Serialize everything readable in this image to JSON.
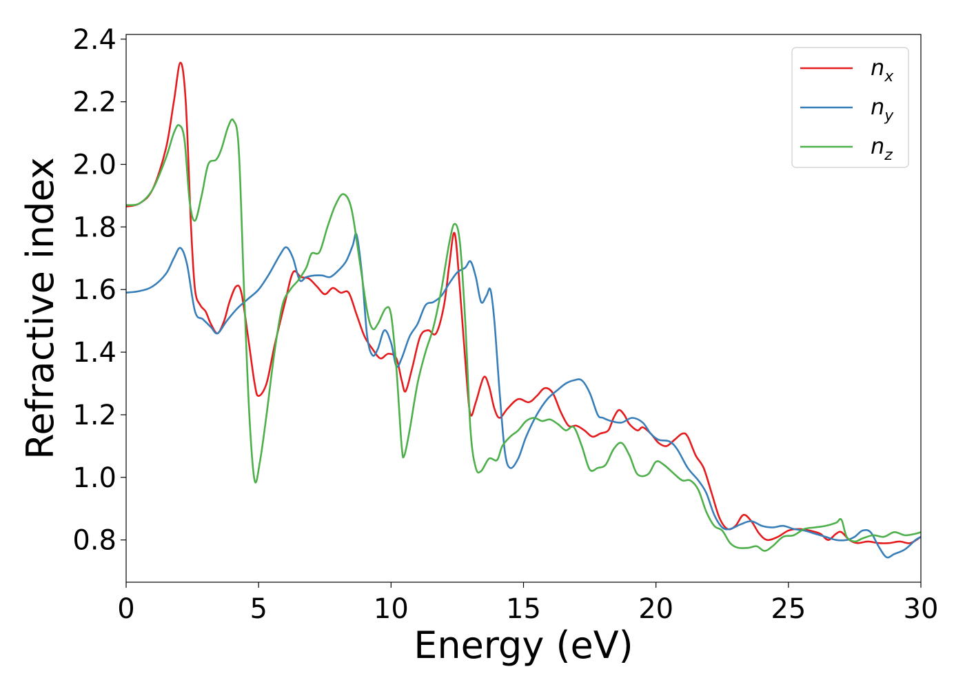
{
  "chart_data": {
    "type": "line",
    "xlabel": "Energy (eV)",
    "ylabel": "Refractive index",
    "xlim": [
      0,
      30
    ],
    "ylim": [
      0.665,
      2.415
    ],
    "xticks": [
      0,
      5,
      10,
      15,
      20,
      25,
      30
    ],
    "yticks": [
      0.8,
      1.0,
      1.2,
      1.4,
      1.6,
      1.8,
      2.0,
      2.2,
      2.4
    ],
    "xtick_labels": [
      "0",
      "5",
      "10",
      "15",
      "20",
      "25",
      "30"
    ],
    "ytick_labels": [
      "0.8",
      "1.0",
      "1.2",
      "1.4",
      "1.6",
      "1.8",
      "2.0",
      "2.2",
      "2.4"
    ],
    "grid": false,
    "legend_position": "top-right",
    "series": [
      {
        "name": "n_x",
        "label_main": "n",
        "label_sub": "x",
        "color": "#e41a1c",
        "points": [
          [
            0,
            1.865
          ],
          [
            0.5,
            1.875
          ],
          [
            1,
            1.92
          ],
          [
            1.5,
            2.05
          ],
          [
            1.8,
            2.2
          ],
          [
            2.05,
            2.325
          ],
          [
            2.25,
            2.2
          ],
          [
            2.45,
            1.8
          ],
          [
            2.6,
            1.6
          ],
          [
            2.8,
            1.55
          ],
          [
            3.0,
            1.53
          ],
          [
            3.2,
            1.49
          ],
          [
            3.45,
            1.46
          ],
          [
            3.7,
            1.5
          ],
          [
            3.9,
            1.56
          ],
          [
            4.15,
            1.61
          ],
          [
            4.35,
            1.59
          ],
          [
            4.6,
            1.45
          ],
          [
            4.85,
            1.3
          ],
          [
            5.0,
            1.26
          ],
          [
            5.3,
            1.3
          ],
          [
            5.6,
            1.42
          ],
          [
            6.0,
            1.56
          ],
          [
            6.3,
            1.655
          ],
          [
            6.6,
            1.64
          ],
          [
            6.9,
            1.635
          ],
          [
            7.2,
            1.61
          ],
          [
            7.5,
            1.585
          ],
          [
            7.8,
            1.605
          ],
          [
            8.1,
            1.59
          ],
          [
            8.4,
            1.59
          ],
          [
            8.7,
            1.52
          ],
          [
            9.0,
            1.45
          ],
          [
            9.3,
            1.41
          ],
          [
            9.6,
            1.38
          ],
          [
            9.9,
            1.395
          ],
          [
            10.2,
            1.38
          ],
          [
            10.4,
            1.31
          ],
          [
            10.55,
            1.275
          ],
          [
            10.8,
            1.35
          ],
          [
            11.1,
            1.45
          ],
          [
            11.4,
            1.47
          ],
          [
            11.7,
            1.46
          ],
          [
            12.0,
            1.55
          ],
          [
            12.2,
            1.68
          ],
          [
            12.4,
            1.78
          ],
          [
            12.6,
            1.6
          ],
          [
            12.85,
            1.32
          ],
          [
            13.0,
            1.2
          ],
          [
            13.2,
            1.24
          ],
          [
            13.5,
            1.32
          ],
          [
            13.7,
            1.29
          ],
          [
            13.9,
            1.22
          ],
          [
            14.1,
            1.19
          ],
          [
            14.4,
            1.22
          ],
          [
            14.8,
            1.25
          ],
          [
            15.2,
            1.24
          ],
          [
            15.5,
            1.26
          ],
          [
            15.8,
            1.285
          ],
          [
            16.1,
            1.27
          ],
          [
            16.4,
            1.21
          ],
          [
            16.7,
            1.165
          ],
          [
            17.0,
            1.165
          ],
          [
            17.3,
            1.15
          ],
          [
            17.6,
            1.13
          ],
          [
            17.9,
            1.14
          ],
          [
            18.2,
            1.15
          ],
          [
            18.4,
            1.19
          ],
          [
            18.6,
            1.215
          ],
          [
            18.8,
            1.2
          ],
          [
            19.0,
            1.17
          ],
          [
            19.3,
            1.15
          ],
          [
            19.5,
            1.16
          ],
          [
            19.8,
            1.14
          ],
          [
            20.1,
            1.11
          ],
          [
            20.4,
            1.1
          ],
          [
            20.7,
            1.12
          ],
          [
            21.0,
            1.14
          ],
          [
            21.2,
            1.13
          ],
          [
            21.5,
            1.07
          ],
          [
            21.8,
            1.03
          ],
          [
            22.1,
            0.95
          ],
          [
            22.4,
            0.87
          ],
          [
            22.7,
            0.835
          ],
          [
            23.0,
            0.845
          ],
          [
            23.3,
            0.88
          ],
          [
            23.6,
            0.86
          ],
          [
            23.9,
            0.82
          ],
          [
            24.2,
            0.8
          ],
          [
            24.6,
            0.81
          ],
          [
            25.0,
            0.83
          ],
          [
            25.4,
            0.835
          ],
          [
            25.8,
            0.83
          ],
          [
            26.2,
            0.82
          ],
          [
            26.5,
            0.8
          ],
          [
            26.8,
            0.82
          ],
          [
            27.0,
            0.825
          ],
          [
            27.3,
            0.8
          ],
          [
            27.6,
            0.79
          ],
          [
            28.0,
            0.795
          ],
          [
            28.4,
            0.79
          ],
          [
            28.8,
            0.79
          ],
          [
            29.2,
            0.795
          ],
          [
            29.6,
            0.79
          ],
          [
            30.0,
            0.81
          ]
        ]
      },
      {
        "name": "n_y",
        "label_main": "n",
        "label_sub": "y",
        "color": "#377eb8",
        "points": [
          [
            0,
            1.59
          ],
          [
            0.5,
            1.595
          ],
          [
            1.0,
            1.61
          ],
          [
            1.5,
            1.65
          ],
          [
            1.8,
            1.7
          ],
          [
            2.05,
            1.733
          ],
          [
            2.3,
            1.68
          ],
          [
            2.6,
            1.53
          ],
          [
            2.9,
            1.505
          ],
          [
            3.2,
            1.48
          ],
          [
            3.45,
            1.46
          ],
          [
            3.8,
            1.5
          ],
          [
            4.2,
            1.54
          ],
          [
            4.6,
            1.57
          ],
          [
            5.0,
            1.6
          ],
          [
            5.4,
            1.65
          ],
          [
            5.8,
            1.71
          ],
          [
            6.05,
            1.735
          ],
          [
            6.3,
            1.7
          ],
          [
            6.55,
            1.63
          ],
          [
            6.8,
            1.64
          ],
          [
            7.1,
            1.645
          ],
          [
            7.4,
            1.645
          ],
          [
            7.7,
            1.64
          ],
          [
            8.0,
            1.66
          ],
          [
            8.3,
            1.69
          ],
          [
            8.55,
            1.74
          ],
          [
            8.7,
            1.775
          ],
          [
            8.9,
            1.65
          ],
          [
            9.1,
            1.45
          ],
          [
            9.3,
            1.39
          ],
          [
            9.5,
            1.41
          ],
          [
            9.75,
            1.47
          ],
          [
            10.0,
            1.43
          ],
          [
            10.2,
            1.355
          ],
          [
            10.4,
            1.38
          ],
          [
            10.7,
            1.45
          ],
          [
            11.0,
            1.49
          ],
          [
            11.3,
            1.55
          ],
          [
            11.6,
            1.56
          ],
          [
            11.9,
            1.58
          ],
          [
            12.2,
            1.62
          ],
          [
            12.5,
            1.655
          ],
          [
            12.8,
            1.67
          ],
          [
            13.0,
            1.69
          ],
          [
            13.2,
            1.64
          ],
          [
            13.4,
            1.56
          ],
          [
            13.6,
            1.58
          ],
          [
            13.75,
            1.6
          ],
          [
            13.9,
            1.5
          ],
          [
            14.1,
            1.27
          ],
          [
            14.3,
            1.08
          ],
          [
            14.5,
            1.03
          ],
          [
            14.8,
            1.06
          ],
          [
            15.1,
            1.13
          ],
          [
            15.5,
            1.2
          ],
          [
            15.9,
            1.25
          ],
          [
            16.3,
            1.28
          ],
          [
            16.6,
            1.3
          ],
          [
            16.9,
            1.31
          ],
          [
            17.2,
            1.31
          ],
          [
            17.5,
            1.27
          ],
          [
            17.8,
            1.2
          ],
          [
            18.0,
            1.19
          ],
          [
            18.3,
            1.18
          ],
          [
            18.7,
            1.175
          ],
          [
            19.1,
            1.19
          ],
          [
            19.5,
            1.175
          ],
          [
            19.8,
            1.14
          ],
          [
            20.1,
            1.12
          ],
          [
            20.5,
            1.115
          ],
          [
            20.8,
            1.09
          ],
          [
            21.2,
            1.03
          ],
          [
            21.6,
            0.99
          ],
          [
            21.9,
            0.95
          ],
          [
            22.2,
            0.88
          ],
          [
            22.5,
            0.84
          ],
          [
            22.8,
            0.835
          ],
          [
            23.2,
            0.85
          ],
          [
            23.6,
            0.86
          ],
          [
            24.0,
            0.845
          ],
          [
            24.4,
            0.84
          ],
          [
            24.8,
            0.845
          ],
          [
            25.2,
            0.835
          ],
          [
            25.6,
            0.83
          ],
          [
            26.0,
            0.82
          ],
          [
            26.4,
            0.81
          ],
          [
            26.8,
            0.8
          ],
          [
            27.2,
            0.8
          ],
          [
            27.5,
            0.81
          ],
          [
            27.8,
            0.83
          ],
          [
            28.1,
            0.825
          ],
          [
            28.4,
            0.78
          ],
          [
            28.7,
            0.745
          ],
          [
            29.0,
            0.755
          ],
          [
            29.4,
            0.77
          ],
          [
            29.8,
            0.8
          ],
          [
            30.0,
            0.81
          ]
        ]
      },
      {
        "name": "n_z",
        "label_main": "n",
        "label_sub": "z",
        "color": "#4daf4a",
        "points": [
          [
            0,
            1.87
          ],
          [
            0.5,
            1.875
          ],
          [
            1.0,
            1.92
          ],
          [
            1.5,
            2.02
          ],
          [
            1.8,
            2.1
          ],
          [
            2.0,
            2.125
          ],
          [
            2.2,
            2.08
          ],
          [
            2.4,
            1.88
          ],
          [
            2.6,
            1.82
          ],
          [
            2.85,
            1.9
          ],
          [
            3.1,
            2.0
          ],
          [
            3.4,
            2.015
          ],
          [
            3.6,
            2.05
          ],
          [
            3.85,
            2.12
          ],
          [
            4.05,
            2.14
          ],
          [
            4.25,
            2.05
          ],
          [
            4.45,
            1.6
          ],
          [
            4.65,
            1.2
          ],
          [
            4.85,
            0.99
          ],
          [
            5.05,
            1.05
          ],
          [
            5.3,
            1.2
          ],
          [
            5.6,
            1.4
          ],
          [
            5.9,
            1.55
          ],
          [
            6.2,
            1.6
          ],
          [
            6.5,
            1.63
          ],
          [
            6.8,
            1.67
          ],
          [
            7.0,
            1.715
          ],
          [
            7.3,
            1.72
          ],
          [
            7.6,
            1.8
          ],
          [
            7.9,
            1.87
          ],
          [
            8.2,
            1.905
          ],
          [
            8.5,
            1.86
          ],
          [
            8.8,
            1.7
          ],
          [
            9.1,
            1.53
          ],
          [
            9.3,
            1.475
          ],
          [
            9.5,
            1.49
          ],
          [
            9.8,
            1.54
          ],
          [
            10.0,
            1.52
          ],
          [
            10.2,
            1.35
          ],
          [
            10.4,
            1.1
          ],
          [
            10.5,
            1.07
          ],
          [
            10.7,
            1.15
          ],
          [
            11.0,
            1.3
          ],
          [
            11.3,
            1.4
          ],
          [
            11.6,
            1.48
          ],
          [
            11.9,
            1.6
          ],
          [
            12.2,
            1.75
          ],
          [
            12.4,
            1.81
          ],
          [
            12.6,
            1.75
          ],
          [
            12.8,
            1.5
          ],
          [
            13.0,
            1.15
          ],
          [
            13.2,
            1.03
          ],
          [
            13.4,
            1.02
          ],
          [
            13.7,
            1.06
          ],
          [
            14.0,
            1.055
          ],
          [
            14.2,
            1.1
          ],
          [
            14.5,
            1.13
          ],
          [
            14.8,
            1.15
          ],
          [
            15.1,
            1.18
          ],
          [
            15.4,
            1.19
          ],
          [
            15.7,
            1.18
          ],
          [
            16.0,
            1.185
          ],
          [
            16.3,
            1.17
          ],
          [
            16.6,
            1.15
          ],
          [
            16.9,
            1.16
          ],
          [
            17.2,
            1.1
          ],
          [
            17.5,
            1.025
          ],
          [
            17.8,
            1.03
          ],
          [
            18.1,
            1.04
          ],
          [
            18.4,
            1.09
          ],
          [
            18.7,
            1.11
          ],
          [
            19.0,
            1.07
          ],
          [
            19.3,
            1.01
          ],
          [
            19.7,
            1.01
          ],
          [
            20.0,
            1.05
          ],
          [
            20.3,
            1.04
          ],
          [
            20.7,
            1.01
          ],
          [
            21.0,
            0.99
          ],
          [
            21.3,
            0.99
          ],
          [
            21.6,
            0.96
          ],
          [
            21.9,
            0.89
          ],
          [
            22.2,
            0.845
          ],
          [
            22.5,
            0.83
          ],
          [
            22.8,
            0.79
          ],
          [
            23.1,
            0.775
          ],
          [
            23.5,
            0.775
          ],
          [
            23.8,
            0.78
          ],
          [
            24.1,
            0.765
          ],
          [
            24.4,
            0.78
          ],
          [
            24.8,
            0.81
          ],
          [
            25.2,
            0.815
          ],
          [
            25.6,
            0.835
          ],
          [
            26.0,
            0.84
          ],
          [
            26.4,
            0.845
          ],
          [
            26.8,
            0.855
          ],
          [
            27.0,
            0.865
          ],
          [
            27.2,
            0.81
          ],
          [
            27.5,
            0.795
          ],
          [
            27.8,
            0.805
          ],
          [
            28.2,
            0.815
          ],
          [
            28.6,
            0.81
          ],
          [
            29.0,
            0.825
          ],
          [
            29.4,
            0.815
          ],
          [
            29.8,
            0.82
          ],
          [
            30.0,
            0.825
          ]
        ]
      }
    ]
  }
}
